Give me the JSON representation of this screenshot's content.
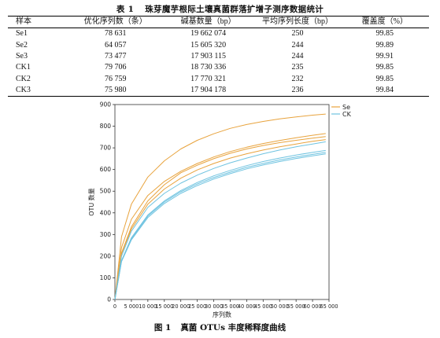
{
  "table": {
    "number": "表 1",
    "title": "珠芽魔芋根际土壤真菌群落扩增子测序数据统计",
    "headers": [
      "样本",
      "优化序列数（条）",
      "碱基数量（bp）",
      "平均序列长度（bp）",
      "覆盖度（%）"
    ],
    "rows": [
      [
        "Se1",
        "78 631",
        "19 662 074",
        "250",
        "99.85"
      ],
      [
        "Se2",
        "64 057",
        "15 605 320",
        "244",
        "99.89"
      ],
      [
        "Se3",
        "73 477",
        "17 903 115",
        "244",
        "99.91"
      ],
      [
        "CK1",
        "79 706",
        "18 730 336",
        "235",
        "99.85"
      ],
      [
        "CK2",
        "76 759",
        "17 770 321",
        "232",
        "99.85"
      ],
      [
        "CK3",
        "75 980",
        "17 904 178",
        "236",
        "99.84"
      ]
    ]
  },
  "figure": {
    "number": "图 1",
    "caption": "真菌 OTUs 丰度稀释度曲线"
  },
  "colors": {
    "Se": "#e8a33d",
    "CK": "#6fc3e0"
  },
  "chart_data": {
    "type": "line",
    "xlabel": "序列数",
    "ylabel": "OTU 数量",
    "xlim": [
      0,
      65000
    ],
    "ylim": [
      0,
      900
    ],
    "xticks": [
      0,
      5000,
      10000,
      15000,
      20000,
      25000,
      30000,
      35000,
      40000,
      45000,
      50000,
      55000,
      60000,
      65000
    ],
    "xtick_labels": [
      "0",
      "5 000",
      "10 000",
      "15 000",
      "20 000",
      "25 000",
      "30 000",
      "35 000",
      "40 000",
      "45 000",
      "50 000",
      "55 000",
      "60 000",
      "65 000"
    ],
    "yticks": [
      0,
      100,
      200,
      300,
      400,
      500,
      600,
      700,
      800,
      900
    ],
    "ytick_labels": [
      "0",
      "100",
      "200",
      "300",
      "400",
      "500",
      "600",
      "700",
      "800",
      "900"
    ],
    "legend": {
      "placement": "top-right",
      "entries": [
        "Se",
        "CK"
      ]
    },
    "grid": false,
    "series": [
      {
        "group": "Se",
        "x": [
          0,
          2000,
          5000,
          10000,
          15000,
          20000,
          25000,
          30000,
          35000,
          40000,
          45000,
          50000,
          55000,
          60000,
          64000
        ],
        "y": [
          0,
          290,
          440,
          565,
          640,
          695,
          735,
          765,
          790,
          808,
          822,
          834,
          843,
          851,
          856
        ]
      },
      {
        "group": "Se",
        "x": [
          0,
          2000,
          5000,
          10000,
          15000,
          20000,
          25000,
          30000,
          35000,
          40000,
          45000,
          50000,
          55000,
          60000,
          64000
        ],
        "y": [
          0,
          240,
          370,
          480,
          545,
          592,
          628,
          658,
          683,
          703,
          720,
          734,
          747,
          758,
          766
        ]
      },
      {
        "group": "Se",
        "x": [
          0,
          2000,
          5000,
          10000,
          15000,
          20000,
          25000,
          30000,
          35000,
          40000,
          45000,
          50000,
          55000,
          60000,
          64000
        ],
        "y": [
          0,
          215,
          335,
          455,
          530,
          585,
          620,
          650,
          675,
          695,
          711,
          724,
          735,
          745,
          752
        ]
      },
      {
        "group": "Se",
        "x": [
          0,
          2000,
          5000,
          10000,
          15000,
          20000,
          25000,
          30000,
          35000,
          40000,
          45000,
          50000,
          55000,
          60000,
          64000
        ],
        "y": [
          0,
          210,
          325,
          440,
          510,
          560,
          598,
          628,
          653,
          673,
          690,
          705,
          718,
          730,
          738
        ]
      },
      {
        "group": "CK",
        "x": [
          0,
          2000,
          5000,
          10000,
          15000,
          20000,
          25000,
          30000,
          35000,
          40000,
          45000,
          50000,
          55000,
          60000,
          64000
        ],
        "y": [
          0,
          200,
          315,
          425,
          490,
          537,
          574,
          605,
          631,
          653,
          673,
          690,
          705,
          718,
          728
        ]
      },
      {
        "group": "CK",
        "x": [
          0,
          2000,
          5000,
          10000,
          15000,
          20000,
          25000,
          30000,
          35000,
          40000,
          45000,
          50000,
          55000,
          60000,
          64000
        ],
        "y": [
          0,
          180,
          285,
          390,
          455,
          503,
          540,
          571,
          596,
          618,
          637,
          653,
          667,
          679,
          688
        ]
      },
      {
        "group": "CK",
        "x": [
          0,
          2000,
          5000,
          10000,
          15000,
          20000,
          25000,
          30000,
          35000,
          40000,
          45000,
          50000,
          55000,
          60000,
          64000
        ],
        "y": [
          0,
          178,
          280,
          385,
          450,
          497,
          533,
          563,
          588,
          610,
          628,
          644,
          658,
          670,
          679
        ]
      },
      {
        "group": "CK",
        "x": [
          0,
          2000,
          5000,
          10000,
          15000,
          20000,
          25000,
          30000,
          35000,
          40000,
          45000,
          50000,
          55000,
          60000,
          64000
        ],
        "y": [
          0,
          175,
          275,
          378,
          443,
          490,
          526,
          556,
          581,
          603,
          621,
          637,
          651,
          663,
          672
        ]
      }
    ]
  }
}
